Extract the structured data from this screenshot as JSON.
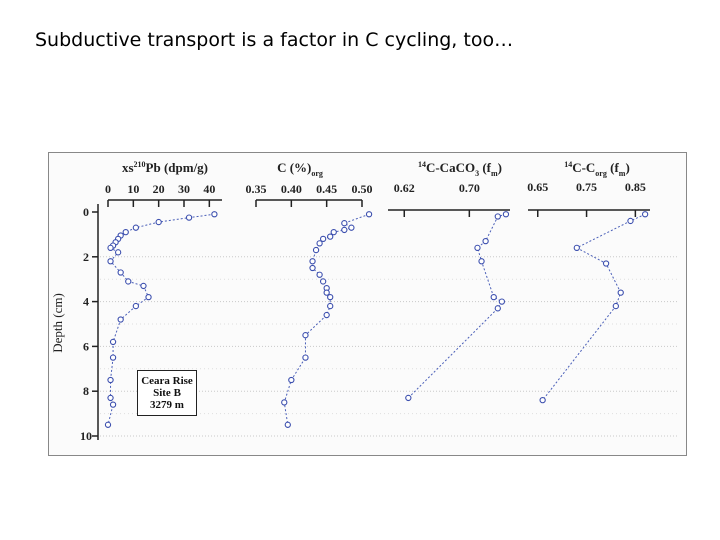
{
  "slide": {
    "title": "Subductive transport is a factor in C cycling, too…"
  },
  "figure": {
    "y_axis_label": "Depth (cm)",
    "y_ticks": [
      "0",
      "2",
      "4",
      "6",
      "8",
      "10"
    ],
    "inset": {
      "line1": "Ceara Rise",
      "line2": "Site B",
      "line3": "3279 m"
    }
  },
  "chart_data": [
    {
      "type": "scatter",
      "title_main": "xs",
      "title_sup": "210",
      "title_rest": "Pb (dpm/g)",
      "ylabel": "Depth (cm)",
      "ylim": [
        0,
        10
      ],
      "xlim": [
        0,
        45
      ],
      "xticks": [
        0,
        10,
        20,
        30,
        40
      ],
      "xtick_labels": [
        "0",
        "10",
        "20",
        "30",
        "40"
      ],
      "x": [
        42,
        32,
        20,
        11,
        7,
        5,
        4,
        3,
        2,
        1,
        4,
        1,
        5,
        8,
        14,
        16,
        11,
        5,
        2,
        2,
        1,
        1,
        2,
        0
      ],
      "y": [
        0.1,
        0.25,
        0.45,
        0.7,
        0.9,
        1.05,
        1.2,
        1.35,
        1.5,
        1.6,
        1.8,
        2.2,
        2.7,
        3.1,
        3.3,
        3.8,
        4.2,
        4.8,
        5.8,
        6.5,
        7.5,
        8.3,
        8.6,
        9.5
      ]
    },
    {
      "type": "scatter",
      "title_main": "C",
      "title_sub": "org",
      "title_rest": " (%)",
      "ylim": [
        0,
        10
      ],
      "xlim": [
        0.35,
        0.5
      ],
      "xticks": [
        0.35,
        0.4,
        0.45,
        0.5
      ],
      "xtick_labels": [
        "0.35",
        "0.40",
        "0.45",
        "0.50"
      ],
      "x": [
        0.51,
        0.475,
        0.485,
        0.475,
        0.46,
        0.455,
        0.445,
        0.44,
        0.435,
        0.43,
        0.43,
        0.44,
        0.445,
        0.45,
        0.45,
        0.455,
        0.455,
        0.45,
        0.42,
        0.42,
        0.4,
        0.39,
        0.395
      ],
      "y": [
        0.1,
        0.5,
        0.7,
        0.8,
        0.9,
        1.1,
        1.2,
        1.4,
        1.7,
        2.2,
        2.5,
        2.8,
        3.1,
        3.4,
        3.6,
        3.8,
        4.2,
        4.6,
        5.5,
        6.5,
        7.5,
        8.5,
        9.5
      ]
    },
    {
      "type": "scatter",
      "title_main": "",
      "title_sup": "14",
      "title_rest": "C-CaCO",
      "title_sub": "3",
      "title_unit": " (f",
      "title_unit_sub": "m",
      "title_end": ")",
      "ylim": [
        0,
        10
      ],
      "xlim": [
        0.6,
        0.75
      ],
      "xticks": [
        0.62,
        0.7
      ],
      "xtick_labels": [
        "0.62",
        "0.70"
      ],
      "x": [
        0.745,
        0.735,
        0.72,
        0.71,
        0.715,
        0.73,
        0.74,
        0.735,
        0.625
      ],
      "y": [
        0.1,
        0.2,
        1.3,
        1.6,
        2.2,
        3.8,
        4.0,
        4.3,
        8.3
      ]
    },
    {
      "type": "scatter",
      "title_main": "",
      "title_sup": "14",
      "title_rest": "C-C",
      "title_sub": "org",
      "title_unit": " (f",
      "title_unit_sub": "m",
      "title_end": ")",
      "ylim": [
        0,
        10
      ],
      "xlim": [
        0.63,
        0.88
      ],
      "xticks": [
        0.65,
        0.75,
        0.85
      ],
      "xtick_labels": [
        "0.65",
        "0.75",
        "0.85"
      ],
      "x": [
        0.87,
        0.84,
        0.73,
        0.79,
        0.82,
        0.81,
        0.66
      ],
      "y": [
        0.1,
        0.4,
        1.6,
        2.3,
        3.6,
        4.2,
        8.4
      ]
    }
  ]
}
